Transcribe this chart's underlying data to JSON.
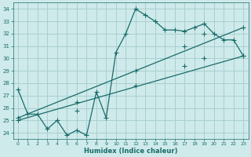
{
  "xlabel": "Humidex (Indice chaleur)",
  "bg_color": "#ceeaea",
  "grid_color": "#aacfcf",
  "line_color": "#1a6b6b",
  "xlim": [
    -0.5,
    23.5
  ],
  "ylim": [
    23.5,
    34.5
  ],
  "yticks": [
    24,
    25,
    26,
    27,
    28,
    29,
    30,
    31,
    32,
    33,
    34
  ],
  "xticks": [
    0,
    1,
    2,
    3,
    4,
    5,
    6,
    7,
    8,
    9,
    10,
    11,
    12,
    13,
    14,
    15,
    16,
    17,
    18,
    19,
    20,
    21,
    22,
    23
  ],
  "line1_x": [
    0,
    1,
    2,
    3,
    4,
    5,
    6,
    7,
    8,
    9,
    10,
    11,
    12,
    13,
    14,
    15,
    16,
    17,
    18,
    19,
    20,
    21,
    22,
    23
  ],
  "line1_y": [
    27.5,
    25.5,
    25.5,
    24.3,
    25.0,
    23.8,
    24.2,
    23.8,
    27.3,
    25.2,
    30.5,
    32.0,
    34.0,
    33.5,
    33.0,
    32.3,
    32.3,
    32.2,
    32.5,
    32.8,
    32.0,
    31.5,
    31.5,
    30.2
  ],
  "line2_x": [
    0,
    23
  ],
  "line2_y": [
    25.2,
    32.5
  ],
  "line3_x": [
    0,
    23
  ],
  "line3_y": [
    25.0,
    30.2
  ],
  "line2_markers_x": [
    0,
    6,
    12,
    17,
    19,
    23
  ],
  "line2_markers_y": [
    25.2,
    26.5,
    29.0,
    31.0,
    32.0,
    32.5
  ],
  "line3_markers_x": [
    0,
    6,
    12,
    17,
    19,
    23
  ],
  "line3_markers_y": [
    25.0,
    25.8,
    27.8,
    29.4,
    30.0,
    30.2
  ]
}
